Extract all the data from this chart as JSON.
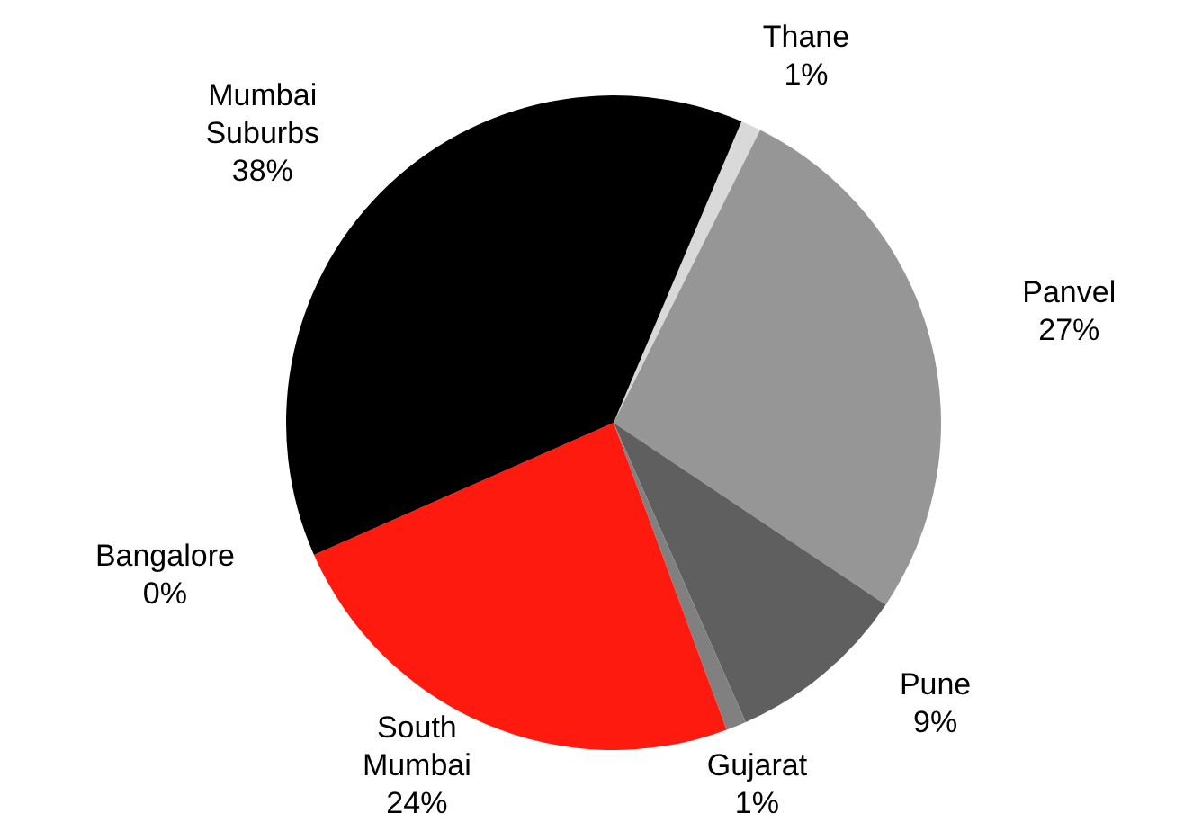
{
  "chart_data": {
    "type": "pie",
    "categories": [
      "Thane",
      "Panvel",
      "Pune",
      "Gujarat",
      "South Mumbai",
      "Bangalore",
      "Mumbai Suburbs"
    ],
    "values": [
      1,
      27,
      9,
      1,
      24,
      0,
      38
    ],
    "value_labels": [
      "1%",
      "27%",
      "9%",
      "1%",
      "24%",
      "0%",
      "38%"
    ],
    "colors": [
      "#d9d9d9",
      "#969696",
      "#5f5f5f",
      "#808080",
      "#ff1a10",
      "#c0c0c0",
      "#000000"
    ],
    "legend": false
  }
}
